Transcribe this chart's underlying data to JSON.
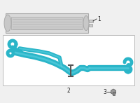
{
  "bg_color": "#f0f0f0",
  "white": "#ffffff",
  "teal": "#2ab5c8",
  "teal_light": "#55ccdd",
  "teal_dark": "#1a8898",
  "black": "#222222",
  "gray_line": "#aaaaaa",
  "gray_fill": "#d8d8d8",
  "gray_med": "#bbbbbb",
  "gray_dark": "#888888",
  "fontsize": 5.5
}
